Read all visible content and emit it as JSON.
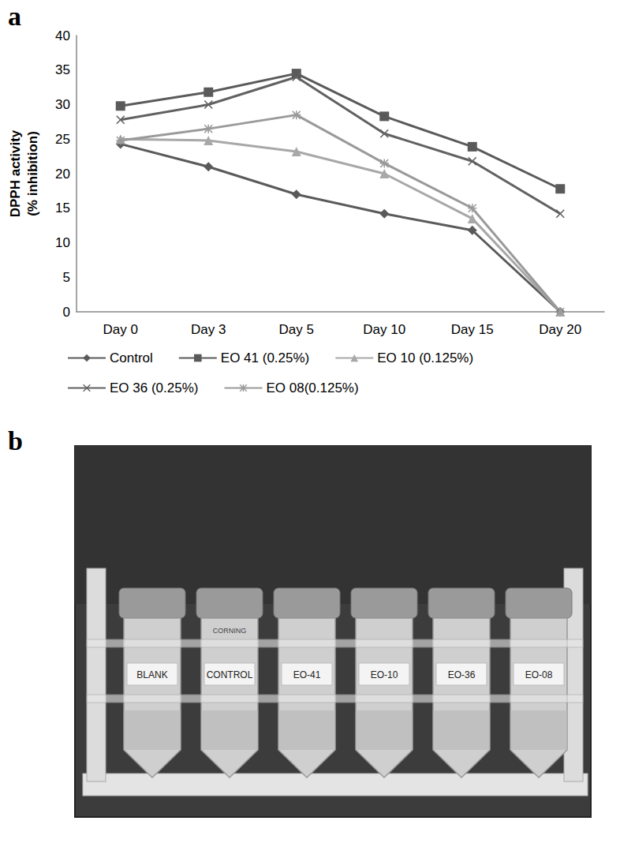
{
  "panels": [
    "a",
    "b"
  ],
  "chart_data": {
    "type": "line",
    "categories": [
      "Day 0",
      "Day 3",
      "Day 5",
      "Day 10",
      "Day 15",
      "Day 20"
    ],
    "y_label": "DPPH activity\n(% inhibition)",
    "ylim": [
      0,
      40
    ],
    "yticks": [
      0,
      5,
      10,
      15,
      20,
      25,
      30,
      35,
      40
    ],
    "grid": false,
    "legend": "bottom",
    "series": [
      {
        "name": "Control",
        "color": "#5a5a5a",
        "marker": "diamond",
        "values": [
          24.3,
          21,
          17,
          14.2,
          11.8,
          0
        ]
      },
      {
        "name": "EO 41 (0.25%)",
        "color": "#5a5a5a",
        "marker": "square",
        "values": [
          29.8,
          31.8,
          34.5,
          28.3,
          23.9,
          17.8
        ]
      },
      {
        "name": "EO 10 (0.125%)",
        "color": "#a8a8a8",
        "marker": "triangle",
        "values": [
          25,
          24.8,
          23.2,
          20,
          13.5,
          0
        ]
      },
      {
        "name": "EO 36 (0.25%)",
        "color": "#616161",
        "marker": "x",
        "values": [
          27.8,
          30,
          34,
          25.8,
          21.8,
          14.2
        ]
      },
      {
        "name": "EO 08(0.125%)",
        "color": "#9a9a9a",
        "marker": "asterisk",
        "values": [
          24.8,
          26.5,
          28.5,
          21.5,
          15,
          0
        ]
      }
    ]
  },
  "photo": {
    "tubes": [
      "BLANK",
      "CONTROL",
      "EO-41",
      "EO-10",
      "EO-36",
      "EO-08"
    ],
    "tube_brand": "CORNING"
  }
}
